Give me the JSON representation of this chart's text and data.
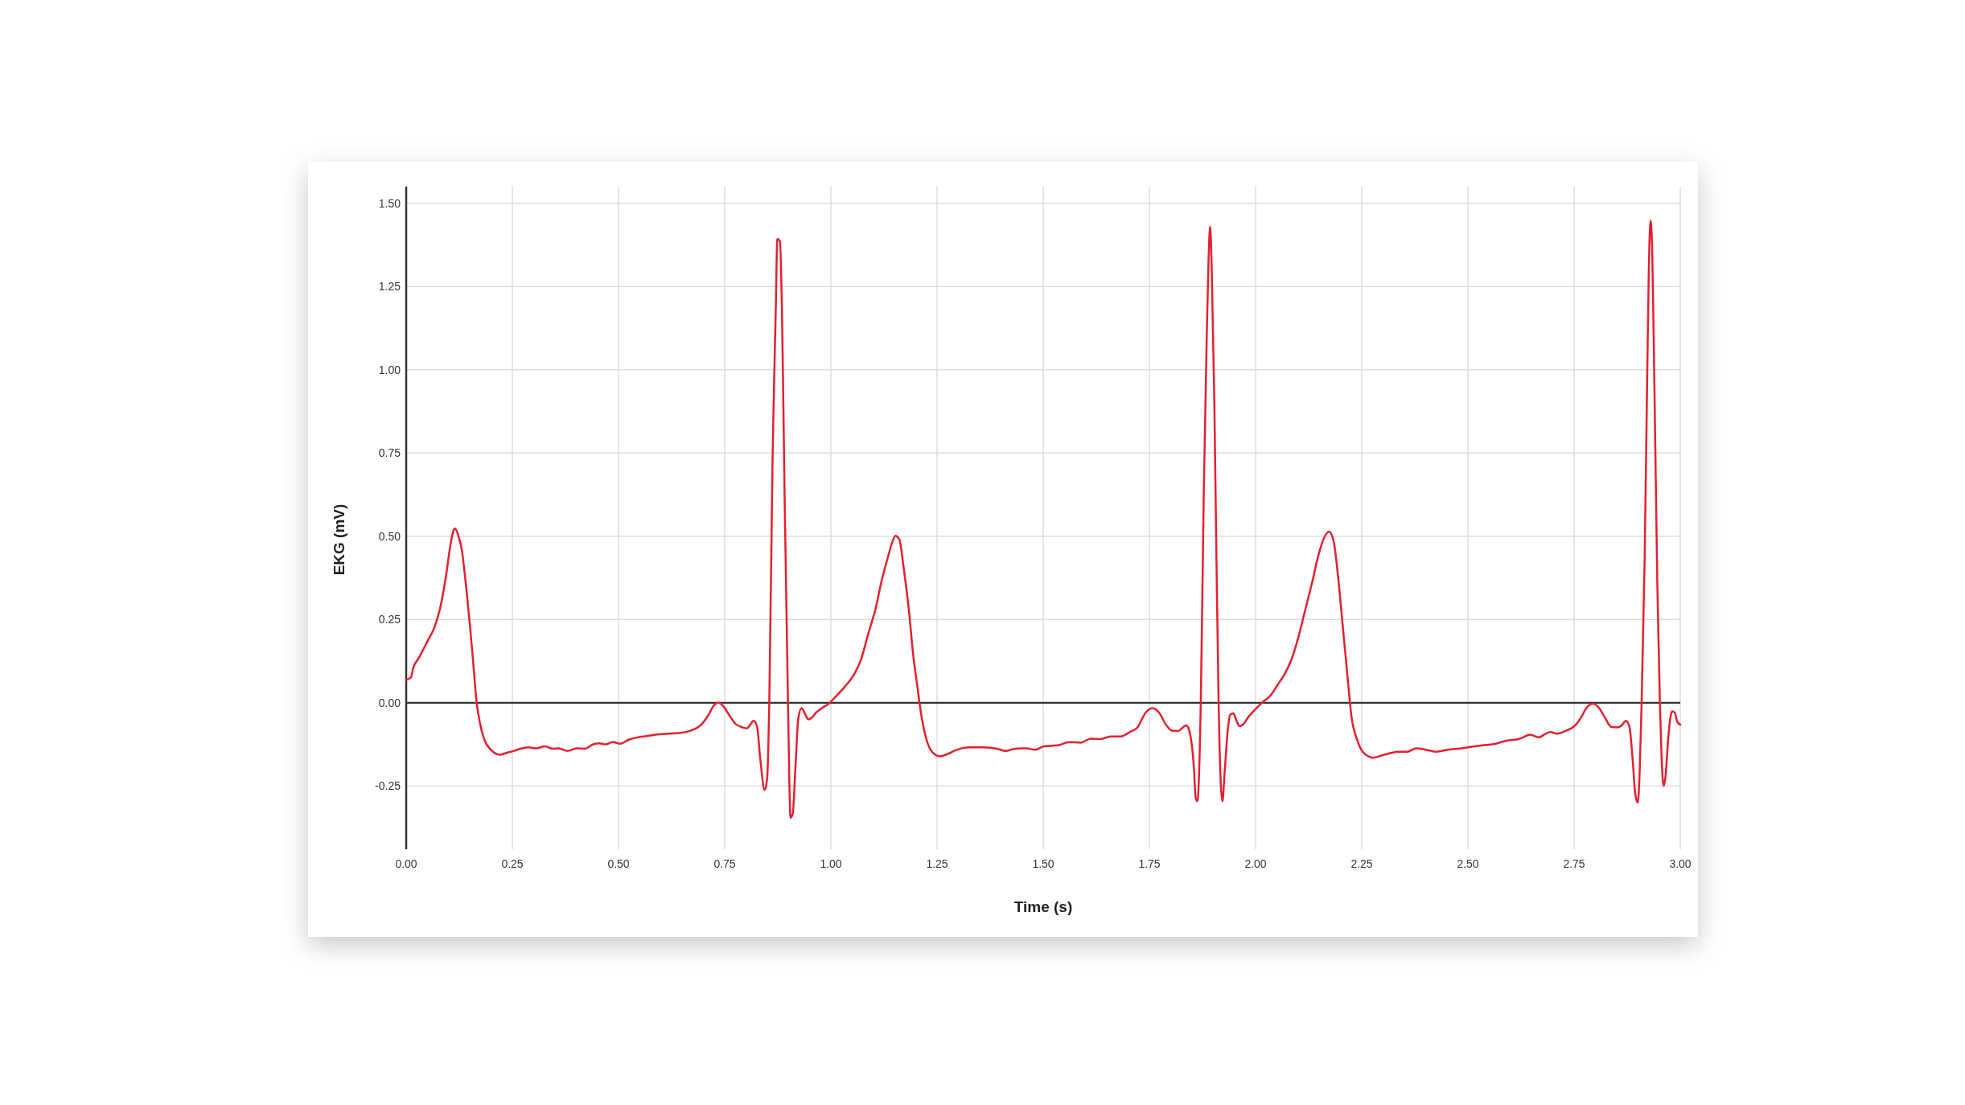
{
  "chart_data": {
    "type": "line",
    "xlabel": "Time (s)",
    "ylabel": "EKG (mV)",
    "x": [
      0,
      0.011,
      0.017,
      0.03,
      0.051,
      0.067,
      0.083,
      0.094,
      0.104,
      0.112,
      0.115,
      0.122,
      0.131,
      0.141,
      0.15,
      0.157,
      0.166,
      0.173,
      0.184,
      0.2,
      0.221,
      0.237,
      0.253,
      0.269,
      0.288,
      0.306,
      0.327,
      0.345,
      0.359,
      0.38,
      0.401,
      0.422,
      0.438,
      0.454,
      0.47,
      0.486,
      0.504,
      0.524,
      0.545,
      0.566,
      0.587,
      0.615,
      0.642,
      0.669,
      0.696,
      0.712,
      0.724,
      0.735,
      0.746,
      0.76,
      0.776,
      0.792,
      0.802,
      0.81,
      0.818,
      0.826,
      0.834,
      0.844,
      0.85,
      0.855,
      0.863,
      0.87,
      0.874,
      0.88,
      0.885,
      0.891,
      0.899,
      0.905,
      0.91,
      0.917,
      0.923,
      0.931,
      0.938,
      0.947,
      0.954,
      0.965,
      0.979,
      0.995,
      1.011,
      1.032,
      1.056,
      1.07,
      1.088,
      1.105,
      1.12,
      1.134,
      1.145,
      1.152,
      1.161,
      1.171,
      1.184,
      1.193,
      1.204,
      1.212,
      1.225,
      1.24,
      1.257,
      1.273,
      1.295,
      1.327,
      1.359,
      1.391,
      1.412,
      1.433,
      1.46,
      1.481,
      1.502,
      1.534,
      1.561,
      1.588,
      1.612,
      1.635,
      1.659,
      1.683,
      1.704,
      1.722,
      1.741,
      1.757,
      1.773,
      1.789,
      1.803,
      1.818,
      1.829,
      1.837,
      1.844,
      1.855,
      1.859,
      1.863,
      1.871,
      1.878,
      1.885,
      1.889,
      1.893,
      1.897,
      1.903,
      1.908,
      1.913,
      1.918,
      1.922,
      1.927,
      1.935,
      1.94,
      1.948,
      1.954,
      1.962,
      1.97,
      1.983,
      2.0,
      2.015,
      2.034,
      2.052,
      2.068,
      2.084,
      2.1,
      2.116,
      2.132,
      2.148,
      2.162,
      2.173,
      2.184,
      2.194,
      2.205,
      2.216,
      2.226,
      2.239,
      2.255,
      2.277,
      2.298,
      2.319,
      2.335,
      2.357,
      2.378,
      2.4,
      2.426,
      2.453,
      2.485,
      2.5,
      2.534,
      2.566,
      2.587,
      2.619,
      2.63,
      2.646,
      2.667,
      2.683,
      2.694,
      2.71,
      2.731,
      2.753,
      2.767,
      2.779,
      2.795,
      2.809,
      2.822,
      2.838,
      2.852,
      2.862,
      2.872,
      2.88,
      2.888,
      2.894,
      2.9,
      2.905,
      2.909,
      2.916,
      2.922,
      2.926,
      2.93,
      2.934,
      2.939,
      2.946,
      2.952,
      2.956,
      2.961,
      2.966,
      2.971,
      2.977,
      2.981,
      2.987,
      2.993,
      3.0
    ],
    "series": [
      {
        "color": "#e3202f",
        "values": [
          0.069,
          0.076,
          0.106,
          0.135,
          0.187,
          0.228,
          0.302,
          0.383,
          0.472,
          0.519,
          0.523,
          0.505,
          0.458,
          0.35,
          0.234,
          0.133,
          0.0,
          -0.057,
          -0.111,
          -0.142,
          -0.156,
          -0.15,
          -0.145,
          -0.138,
          -0.134,
          -0.137,
          -0.131,
          -0.138,
          -0.137,
          -0.145,
          -0.137,
          -0.138,
          -0.126,
          -0.122,
          -0.125,
          -0.118,
          -0.123,
          -0.111,
          -0.104,
          -0.1,
          -0.096,
          -0.093,
          -0.091,
          -0.084,
          -0.064,
          -0.036,
          -0.009,
          0.0,
          -0.009,
          -0.036,
          -0.064,
          -0.074,
          -0.077,
          -0.066,
          -0.054,
          -0.07,
          -0.172,
          -0.262,
          -0.226,
          0.004,
          0.761,
          1.166,
          1.393,
          1.386,
          1.166,
          0.626,
          0.0,
          -0.345,
          -0.334,
          -0.185,
          -0.05,
          -0.016,
          -0.03,
          -0.05,
          -0.046,
          -0.03,
          -0.016,
          -0.003,
          0.018,
          0.047,
          0.088,
          0.126,
          0.207,
          0.281,
          0.369,
          0.436,
          0.484,
          0.501,
          0.491,
          0.409,
          0.274,
          0.153,
          0.045,
          -0.03,
          -0.11,
          -0.15,
          -0.161,
          -0.155,
          -0.142,
          -0.134,
          -0.134,
          -0.138,
          -0.145,
          -0.138,
          -0.137,
          -0.141,
          -0.131,
          -0.128,
          -0.118,
          -0.12,
          -0.108,
          -0.109,
          -0.101,
          -0.101,
          -0.088,
          -0.074,
          -0.03,
          -0.016,
          -0.03,
          -0.066,
          -0.084,
          -0.085,
          -0.074,
          -0.068,
          -0.084,
          -0.199,
          -0.286,
          -0.296,
          0.0,
          0.626,
          1.099,
          1.315,
          1.43,
          1.288,
          0.896,
          0.423,
          0.0,
          -0.239,
          -0.296,
          -0.212,
          -0.077,
          -0.036,
          -0.032,
          -0.05,
          -0.07,
          -0.066,
          -0.043,
          -0.019,
          0.0,
          0.02,
          0.054,
          0.085,
          0.128,
          0.193,
          0.274,
          0.355,
          0.443,
          0.497,
          0.514,
          0.484,
          0.382,
          0.234,
          0.085,
          -0.043,
          -0.111,
          -0.151,
          -0.165,
          -0.158,
          -0.151,
          -0.147,
          -0.147,
          -0.137,
          -0.141,
          -0.147,
          -0.141,
          -0.137,
          -0.134,
          -0.128,
          -0.123,
          -0.115,
          -0.109,
          -0.104,
          -0.096,
          -0.104,
          -0.093,
          -0.088,
          -0.093,
          -0.084,
          -0.068,
          -0.043,
          -0.016,
          -0.003,
          -0.016,
          -0.043,
          -0.073,
          -0.074,
          -0.068,
          -0.054,
          -0.07,
          -0.172,
          -0.273,
          -0.3,
          -0.185,
          0.0,
          0.423,
          0.964,
          1.302,
          1.448,
          1.356,
          0.964,
          0.355,
          0.0,
          -0.165,
          -0.25,
          -0.212,
          -0.118,
          -0.043,
          -0.026,
          -0.03,
          -0.057,
          -0.066
        ]
      }
    ],
    "xlim": [
      0,
      3
    ],
    "ylim": [
      -0.44,
      1.55
    ],
    "xticks": [
      {
        "value": 0,
        "label": "0.00"
      },
      0.25,
      {
        "value": 0.5,
        "label": "0.50"
      },
      0.75,
      {
        "value": 1,
        "label": "1.00"
      },
      1.25,
      {
        "value": 1.5,
        "label": "1.50"
      },
      1.75,
      {
        "value": 2,
        "label": "2.00"
      },
      2.25,
      {
        "value": 2.5,
        "label": "2.50"
      },
      2.75,
      {
        "value": 3,
        "label": "3.00"
      }
    ],
    "yticks": [
      -0.25,
      {
        "value": 0,
        "label": "0.00"
      },
      0.25,
      {
        "value": 0.5,
        "label": "0.50"
      },
      0.75,
      {
        "value": 1,
        "label": "1.00"
      },
      1.25,
      {
        "value": 1.5,
        "label": "1.50"
      }
    ],
    "grid": true,
    "ref_lines": [
      {
        "axis": "y",
        "value": 0,
        "color": "#333333"
      }
    ]
  }
}
